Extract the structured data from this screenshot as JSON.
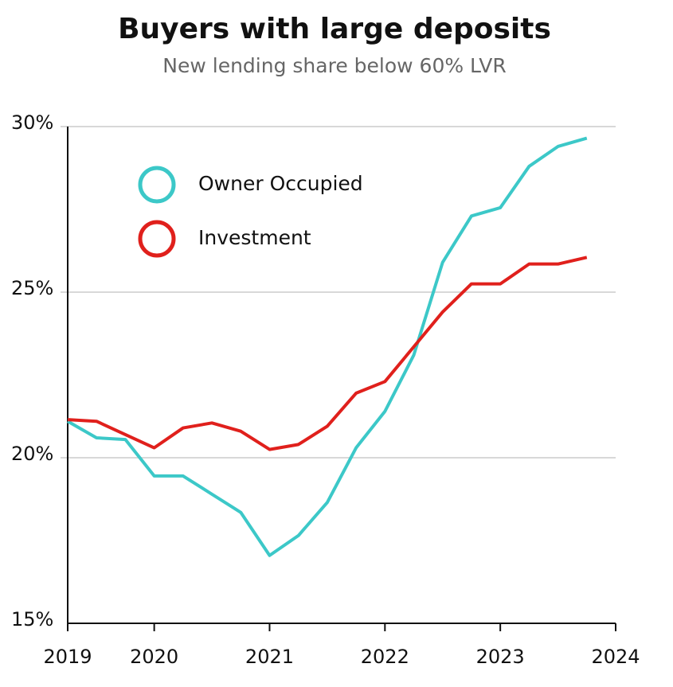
{
  "chart_data": {
    "type": "line",
    "title": "Buyers with large deposits",
    "subtitle": "New lending share below 60% LVR",
    "x": [
      2019.25,
      2019.5,
      2019.75,
      2020,
      2020.25,
      2020.5,
      2020.75,
      2021,
      2021.25,
      2021.5,
      2021.75,
      2022,
      2022.25,
      2022.5,
      2022.75,
      2023,
      2023.25,
      2023.5,
      2023.75
    ],
    "series": [
      {
        "name": "Owner Occupied",
        "color": "#3cc8c8",
        "values": [
          21.1,
          20.6,
          20.55,
          19.45,
          19.45,
          18.9,
          18.35,
          17.05,
          17.65,
          18.65,
          20.3,
          21.4,
          23.1,
          25.9,
          27.3,
          27.55,
          28.8,
          29.4,
          29.65
        ]
      },
      {
        "name": "Investment",
        "color": "#e0201c",
        "values": [
          21.15,
          21.1,
          20.7,
          20.3,
          20.9,
          21.05,
          20.8,
          20.25,
          20.4,
          20.95,
          21.95,
          22.3,
          23.35,
          24.4,
          25.25,
          25.25,
          25.85,
          25.85,
          26.05
        ]
      }
    ],
    "xlim": [
      2019.25,
      2024
    ],
    "xticks": [
      {
        "value": 2019.25,
        "label": "2019"
      },
      2020,
      2021,
      2022,
      2023,
      2024
    ],
    "ylim": [
      15,
      30
    ],
    "yticks": [
      {
        "value": 15,
        "label": "15%"
      },
      {
        "value": 20,
        "label": "20%"
      },
      {
        "value": 25,
        "label": "25%"
      },
      {
        "value": 30,
        "label": "30%"
      }
    ],
    "grid": true,
    "legend": "upper left"
  }
}
